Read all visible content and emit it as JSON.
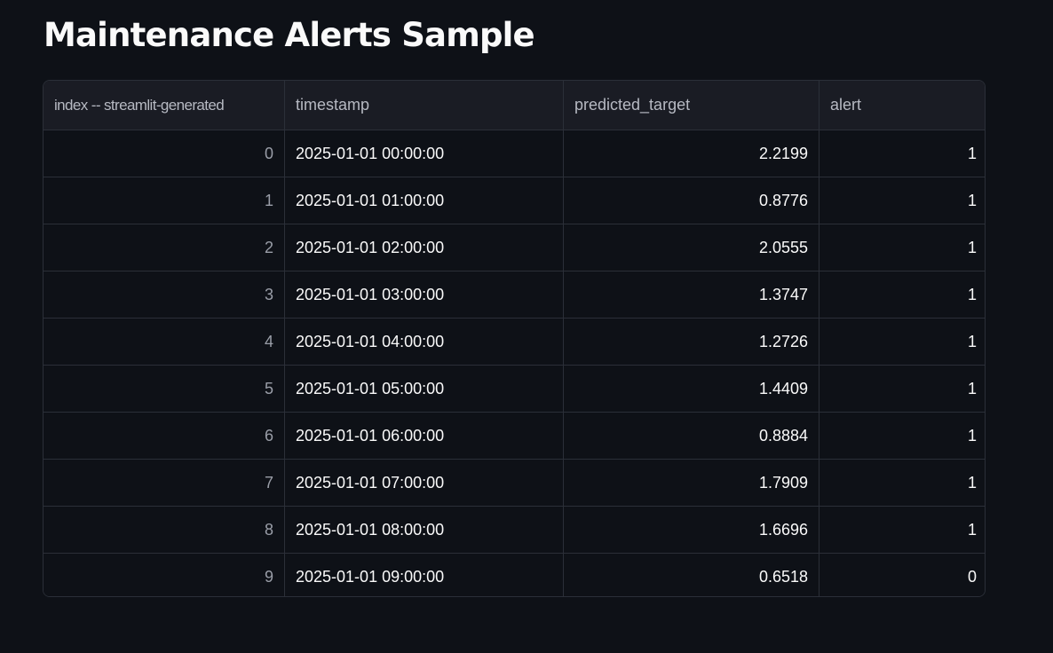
{
  "page": {
    "title": "Maintenance Alerts Sample"
  },
  "table": {
    "columns": [
      "index -- streamlit-generated",
      "timestamp",
      "predicted_target",
      "alert"
    ],
    "rows": [
      {
        "index": "0",
        "timestamp": "2025-01-01 00:00:00",
        "predicted_target": "2.2199",
        "alert": "1"
      },
      {
        "index": "1",
        "timestamp": "2025-01-01 01:00:00",
        "predicted_target": "0.8776",
        "alert": "1"
      },
      {
        "index": "2",
        "timestamp": "2025-01-01 02:00:00",
        "predicted_target": "2.0555",
        "alert": "1"
      },
      {
        "index": "3",
        "timestamp": "2025-01-01 03:00:00",
        "predicted_target": "1.3747",
        "alert": "1"
      },
      {
        "index": "4",
        "timestamp": "2025-01-01 04:00:00",
        "predicted_target": "1.2726",
        "alert": "1"
      },
      {
        "index": "5",
        "timestamp": "2025-01-01 05:00:00",
        "predicted_target": "1.4409",
        "alert": "1"
      },
      {
        "index": "6",
        "timestamp": "2025-01-01 06:00:00",
        "predicted_target": "0.8884",
        "alert": "1"
      },
      {
        "index": "7",
        "timestamp": "2025-01-01 07:00:00",
        "predicted_target": "1.7909",
        "alert": "1"
      },
      {
        "index": "8",
        "timestamp": "2025-01-01 08:00:00",
        "predicted_target": "1.6696",
        "alert": "1"
      },
      {
        "index": "9",
        "timestamp": "2025-01-01 09:00:00",
        "predicted_target": "0.6518",
        "alert": "0"
      }
    ]
  },
  "colors": {
    "background": "#0e1117",
    "header_background": "#1a1c24",
    "border": "#2b2f38",
    "text": "#fafafa",
    "muted_text": "#9a9ea8"
  }
}
